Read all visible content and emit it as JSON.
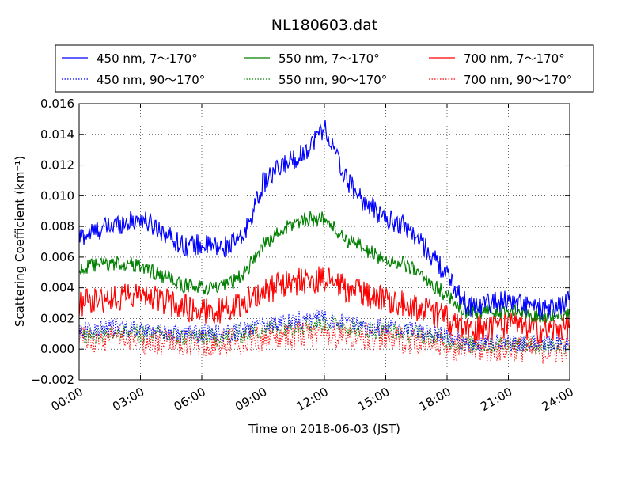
{
  "chart_data": {
    "type": "line",
    "title": "NL180603.dat",
    "xlabel": "Time on 2018-06-03 (JST)",
    "ylabel": "Scattering Coefficient (km⁻¹)",
    "xlim": [
      "00:00",
      "24:00"
    ],
    "ylim": [
      -0.002,
      0.016
    ],
    "x_ticks": [
      "00:00",
      "03:00",
      "06:00",
      "09:00",
      "12:00",
      "15:00",
      "18:00",
      "21:00",
      "24:00"
    ],
    "y_ticks": [
      "−0.002",
      "0.000",
      "0.002",
      "0.004",
      "0.006",
      "0.008",
      "0.010",
      "0.012",
      "0.014",
      "0.016"
    ],
    "grid": true,
    "legend_position": "top",
    "x_hours": [
      0,
      1,
      2,
      3,
      4,
      5,
      6,
      7,
      8,
      9,
      10,
      11,
      12,
      13,
      14,
      15,
      16,
      17,
      18,
      19,
      20,
      21,
      22,
      23,
      24
    ],
    "series": [
      {
        "name": "450 nm, 7～170°",
        "color": "#0000ff",
        "style": "solid",
        "values": [
          0.0073,
          0.0078,
          0.0082,
          0.0085,
          0.0078,
          0.0068,
          0.0068,
          0.0066,
          0.0072,
          0.0108,
          0.012,
          0.0128,
          0.0145,
          0.0112,
          0.0095,
          0.0085,
          0.008,
          0.0065,
          0.0048,
          0.0028,
          0.003,
          0.0032,
          0.0028,
          0.0025,
          0.0032
        ]
      },
      {
        "name": "450 nm, 90～170°",
        "color": "#0000ff",
        "style": "dotted",
        "values": [
          0.0012,
          0.0013,
          0.0014,
          0.0013,
          0.0012,
          0.001,
          0.001,
          0.001,
          0.0012,
          0.0016,
          0.0018,
          0.0019,
          0.002,
          0.0017,
          0.0015,
          0.0014,
          0.0013,
          0.0011,
          0.0008,
          0.0004,
          0.0004,
          0.0004,
          0.0004,
          0.0003,
          0.0004
        ]
      },
      {
        "name": "550 nm, 7～170°",
        "color": "#008000",
        "style": "solid",
        "values": [
          0.0052,
          0.0055,
          0.0056,
          0.0054,
          0.0048,
          0.0042,
          0.004,
          0.004,
          0.0048,
          0.0068,
          0.0078,
          0.0085,
          0.0085,
          0.0072,
          0.0065,
          0.0058,
          0.0055,
          0.0045,
          0.0035,
          0.0024,
          0.0024,
          0.0025,
          0.0023,
          0.0021,
          0.0025
        ]
      },
      {
        "name": "550 nm, 90～170°",
        "color": "#008000",
        "style": "dotted",
        "values": [
          0.0009,
          0.001,
          0.0011,
          0.001,
          0.0009,
          0.0008,
          0.0008,
          0.0008,
          0.001,
          0.0013,
          0.0015,
          0.0016,
          0.0017,
          0.0015,
          0.0013,
          0.0012,
          0.0011,
          0.0009,
          0.0006,
          0.0003,
          0.0003,
          0.0003,
          0.0003,
          0.0002,
          0.0003
        ]
      },
      {
        "name": "700 nm, 7～170°",
        "color": "#ff0000",
        "style": "solid",
        "values": [
          0.003,
          0.0032,
          0.0034,
          0.0035,
          0.0032,
          0.0028,
          0.0025,
          0.0025,
          0.003,
          0.0038,
          0.0042,
          0.0045,
          0.0045,
          0.004,
          0.0036,
          0.0033,
          0.003,
          0.0025,
          0.002,
          0.0012,
          0.0015,
          0.0016,
          0.0014,
          0.0012,
          0.0015
        ]
      },
      {
        "name": "700 nm, 90～170°",
        "color": "#ff0000",
        "style": "dotted",
        "values": [
          0.0006,
          0.0006,
          0.0007,
          0.0006,
          0.0005,
          0.0004,
          0.0004,
          0.0004,
          0.0006,
          0.0008,
          0.0009,
          0.001,
          0.001,
          0.0009,
          0.0008,
          0.0007,
          0.0006,
          0.0004,
          0.0002,
          0.0,
          0.0,
          0.0001,
          0.0,
          -0.0001,
          0.0
        ]
      }
    ]
  }
}
